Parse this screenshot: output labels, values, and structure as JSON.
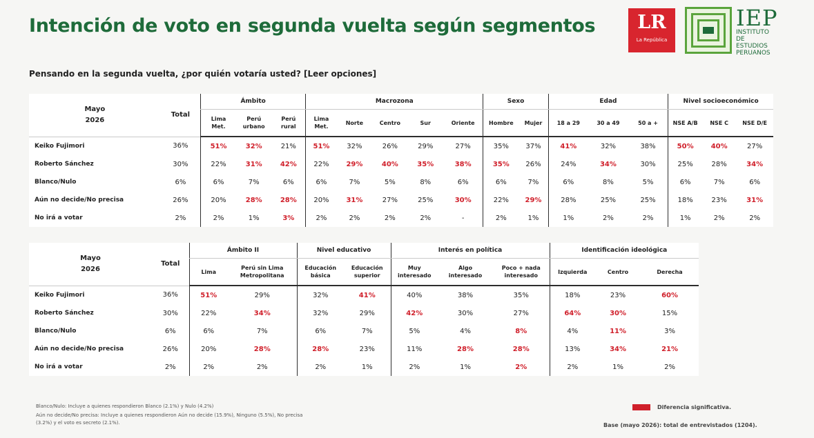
{
  "title": "Intención de voto en segunda vuelta según segmentos",
  "question": "Pensando en la segunda vuelta, ¿por quién votaría usted? [Leer opciones]",
  "logos": {
    "lr_main": "LR",
    "lr_sub": "La República",
    "iep_big": "IEP",
    "iep_line1": "INSTITUTO DE",
    "iep_line2": "ESTUDIOS",
    "iep_line3": "PERUANOS"
  },
  "colors": {
    "title_green": "#1e6b3a",
    "significant_red": "#d0202b",
    "lr_red": "#d8252e"
  },
  "table1": {
    "corner": [
      "Mayo",
      "2026"
    ],
    "total_header": "Total",
    "groups": [
      "Ámbito",
      "Macrozona",
      "Sexo",
      "Edad",
      "Nivel socioeconómico"
    ],
    "columns": [
      [
        "Lima",
        "Met."
      ],
      [
        "Perú",
        "urbano"
      ],
      [
        "Perú",
        "rural"
      ],
      [
        "Lima",
        "Met."
      ],
      [
        "Norte"
      ],
      [
        "Centro"
      ],
      [
        "Sur"
      ],
      [
        "Oriente"
      ],
      [
        "Hombre"
      ],
      [
        "Mujer"
      ],
      [
        "18 a 29"
      ],
      [
        "30 a 49"
      ],
      [
        "50 a +"
      ],
      [
        "NSE A/B"
      ],
      [
        "NSE C"
      ],
      [
        "NSE D/E"
      ]
    ],
    "rows": [
      {
        "label": "Keiko Fujimori",
        "total": "36%",
        "values": [
          "51%",
          "32%",
          "21%",
          "51%",
          "32%",
          "26%",
          "29%",
          "27%",
          "35%",
          "37%",
          "41%",
          "32%",
          "38%",
          "50%",
          "40%",
          "27%"
        ],
        "sig": [
          0,
          1,
          3,
          10,
          13,
          14
        ]
      },
      {
        "label": "Roberto Sánchez",
        "total": "30%",
        "values": [
          "22%",
          "31%",
          "42%",
          "22%",
          "29%",
          "40%",
          "35%",
          "38%",
          "35%",
          "26%",
          "24%",
          "34%",
          "30%",
          "25%",
          "28%",
          "34%"
        ],
        "sig": [
          1,
          2,
          4,
          5,
          6,
          7,
          8,
          11,
          15
        ]
      },
      {
        "label": "Blanco/Nulo",
        "total": "6%",
        "values": [
          "6%",
          "7%",
          "6%",
          "6%",
          "7%",
          "5%",
          "8%",
          "6%",
          "6%",
          "7%",
          "6%",
          "8%",
          "5%",
          "6%",
          "7%",
          "6%"
        ],
        "sig": []
      },
      {
        "label": "Aún no decide/No precisa",
        "total": "26%",
        "values": [
          "20%",
          "28%",
          "28%",
          "20%",
          "31%",
          "27%",
          "25%",
          "30%",
          "22%",
          "29%",
          "28%",
          "25%",
          "25%",
          "18%",
          "23%",
          "31%"
        ],
        "sig": [
          1,
          2,
          4,
          7,
          9,
          15
        ]
      },
      {
        "label": "No irá a votar",
        "total": "2%",
        "values": [
          "2%",
          "1%",
          "3%",
          "2%",
          "2%",
          "2%",
          "2%",
          "-",
          "2%",
          "1%",
          "1%",
          "2%",
          "2%",
          "1%",
          "2%",
          "2%"
        ],
        "sig": [
          2
        ]
      }
    ]
  },
  "table2": {
    "corner": [
      "Mayo",
      "2026"
    ],
    "total_header": "Total",
    "groups": [
      "Ámbito II",
      "Nivel educativo",
      "Interés en política",
      "Identificación ideológica"
    ],
    "columns": [
      [
        "Lima"
      ],
      [
        "Perú sin Lima",
        "Metropolitana"
      ],
      [
        "Educación",
        "básica"
      ],
      [
        "Educación",
        "superior"
      ],
      [
        "Muy",
        "interesado"
      ],
      [
        "Algo",
        "interesado"
      ],
      [
        "Poco + nada",
        "interesado"
      ],
      [
        "Izquierda"
      ],
      [
        "Centro"
      ],
      [
        "Derecha"
      ]
    ],
    "rows": [
      {
        "label": "Keiko Fujimori",
        "total": "36%",
        "values": [
          "51%",
          "29%",
          "32%",
          "41%",
          "40%",
          "38%",
          "35%",
          "18%",
          "23%",
          "60%"
        ],
        "sig": [
          0,
          3,
          9
        ]
      },
      {
        "label": "Roberto Sánchez",
        "total": "30%",
        "values": [
          "22%",
          "34%",
          "32%",
          "29%",
          "42%",
          "30%",
          "27%",
          "64%",
          "30%",
          "15%"
        ],
        "sig": [
          1,
          4,
          7,
          8
        ]
      },
      {
        "label": "Blanco/Nulo",
        "total": "6%",
        "values": [
          "6%",
          "7%",
          "6%",
          "7%",
          "5%",
          "4%",
          "8%",
          "4%",
          "11%",
          "3%"
        ],
        "sig": [
          6,
          8
        ]
      },
      {
        "label": "Aún no decide/No precisa",
        "total": "26%",
        "values": [
          "20%",
          "28%",
          "28%",
          "23%",
          "11%",
          "28%",
          "28%",
          "13%",
          "34%",
          "21%"
        ],
        "sig": [
          1,
          2,
          5,
          6,
          8,
          9
        ]
      },
      {
        "label": "No irá a votar",
        "total": "2%",
        "values": [
          "2%",
          "2%",
          "2%",
          "1%",
          "2%",
          "1%",
          "2%",
          "2%",
          "1%",
          "2%"
        ],
        "sig": [
          6
        ]
      }
    ]
  },
  "notes": [
    "Blanco/Nulo: Incluye a quienes respondieron Blanco (2.1%) y Nulo (4.2%)",
    "Aún no decide/No precisa: Incluye a quienes respondieron Aún no decide (15.9%), Ninguno (5.5%), No precisa",
    "(3.2%) y el voto es secreto (2.1%)."
  ],
  "legend": "Diferencia significativa.",
  "base": "Base (mayo 2026): total de entrevistados (1204)."
}
